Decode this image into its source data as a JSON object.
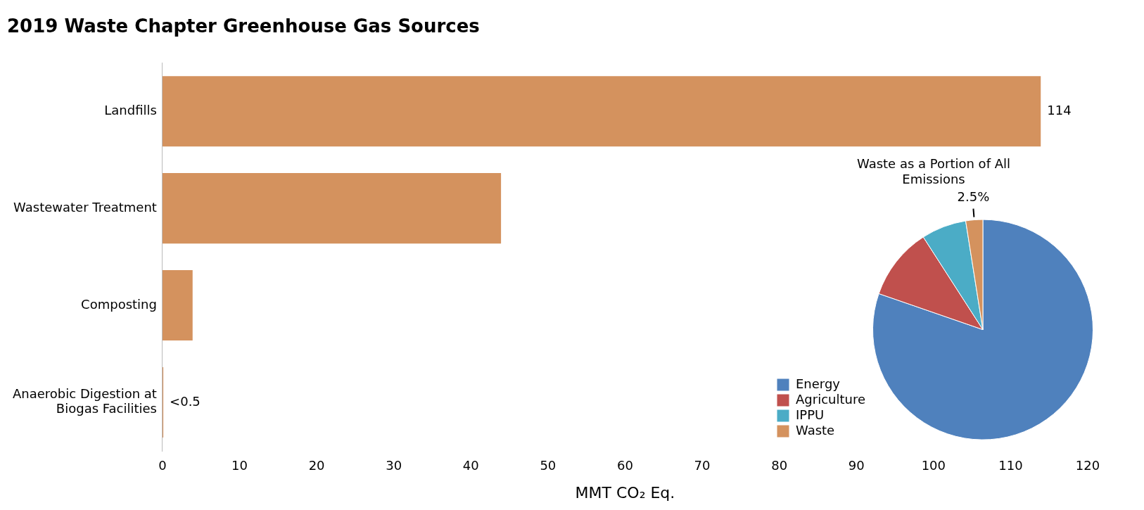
{
  "chart_data": [
    {
      "type": "bar",
      "orientation": "horizontal",
      "title": "2019 Waste Chapter Greenhouse Gas Sources",
      "xlabel": "MMT CO₂ Eq.",
      "categories": [
        "Landfills",
        "Wastewater Treatment",
        "Composting",
        "Anaerobic Digestion at Biogas Facilities"
      ],
      "values": [
        114,
        44,
        4,
        0.2
      ],
      "value_labels": [
        "114",
        null,
        null,
        "<0.5"
      ],
      "color": "#d4925e",
      "xlim": [
        0,
        120
      ],
      "xticks": [
        0,
        10,
        20,
        30,
        40,
        50,
        60,
        70,
        80,
        90,
        100,
        110,
        120
      ],
      "grid": false,
      "legend": false
    },
    {
      "type": "pie",
      "title": "Waste as a Portion of All Emissions",
      "categories": [
        "Energy",
        "Agriculture",
        "IPPU",
        "Waste"
      ],
      "values": [
        80.3,
        10.6,
        6.6,
        2.5
      ],
      "value_labels": [
        null,
        null,
        null,
        "2.5%"
      ],
      "colors": [
        "#4f81bd",
        "#c0504d",
        "#4bacc6",
        "#d4925e"
      ],
      "legend": "left"
    }
  ]
}
